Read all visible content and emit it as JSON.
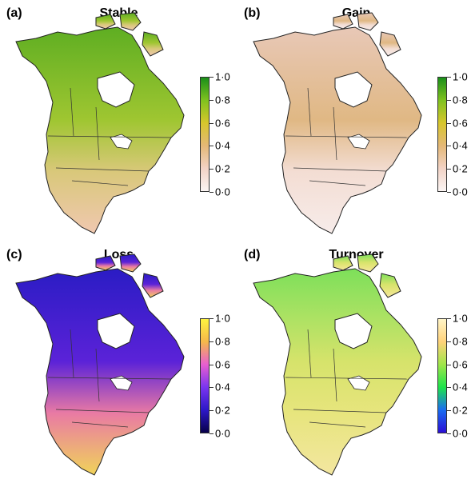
{
  "panels": [
    {
      "id": "a",
      "letter": "(a)",
      "title": "Stable",
      "legend": {
        "ticks": [
          "1·0",
          "0·8",
          "0·6",
          "0·4",
          "0·2",
          "0·0"
        ],
        "colors": [
          "#1a8f1a",
          "#7fc21f",
          "#d7c62c",
          "#e4b877",
          "#f2d3c6",
          "#fbf5f3"
        ]
      },
      "map_colors": {
        "north": "#5eae22",
        "mid": "#9fc631",
        "south": "#d9c87a",
        "far_south": "#f0c8b0"
      }
    },
    {
      "id": "b",
      "letter": "(b)",
      "title": "Gain",
      "legend": {
        "ticks": [
          "1·0",
          "0·8",
          "0·6",
          "0·4",
          "0·2",
          "0·0"
        ],
        "colors": [
          "#1a8f1a",
          "#7fc21f",
          "#d7c62c",
          "#e4b877",
          "#f2d3c6",
          "#fbf5f3"
        ]
      },
      "map_colors": {
        "north": "#e8c8b7",
        "mid": "#e0b884",
        "south": "#f3ddd3",
        "far_south": "#f7ecea"
      }
    },
    {
      "id": "c",
      "letter": "(c)",
      "title": "Loss",
      "legend": {
        "ticks": [
          "1·0",
          "0·8",
          "0·6",
          "0·4",
          "0·2",
          "0·0"
        ],
        "colors": [
          "#fff33f",
          "#f6b84a",
          "#e85fd0",
          "#7a35f0",
          "#2d18c8",
          "#07004a"
        ]
      },
      "map_colors": {
        "north": "#2a1cc4",
        "mid": "#5b22d8",
        "south": "#e97aa4",
        "far_south": "#f0d35a"
      }
    },
    {
      "id": "d",
      "letter": "(d)",
      "title": "Turnover",
      "legend": {
        "ticks": [
          "1·0",
          "0·8",
          "0·6",
          "0·4",
          "0·2",
          "0·0"
        ],
        "colors": [
          "#fff5c7",
          "#ffd27a",
          "#a0e64a",
          "#1ee34b",
          "#1a6cf0",
          "#2b0fd6"
        ]
      },
      "map_colors": {
        "north": "#7de05a",
        "mid": "#d6e36b",
        "south": "#e7e57d",
        "far_south": "#f3e6a0"
      }
    }
  ]
}
